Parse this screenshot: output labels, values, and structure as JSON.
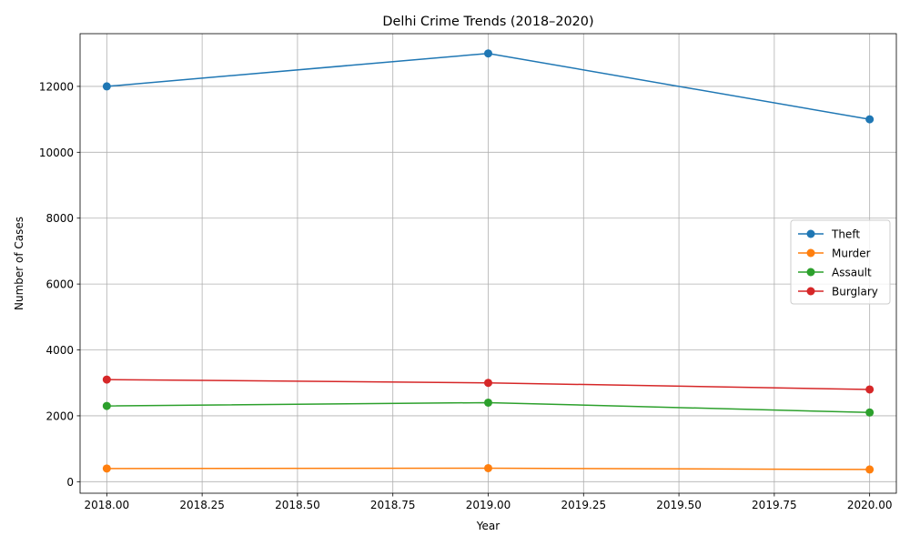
{
  "chart_data": {
    "type": "line",
    "title": "Delhi Crime Trends (2018–2020)",
    "xlabel": "Year",
    "ylabel": "Number of Cases",
    "x": [
      2018,
      2019,
      2020
    ],
    "xlim": [
      2017.93,
      2020.07
    ],
    "ylim": [
      -350,
      13600
    ],
    "xticks": [
      "2018.00",
      "2018.25",
      "2018.50",
      "2018.75",
      "2019.00",
      "2019.25",
      "2019.50",
      "2019.75",
      "2020.00"
    ],
    "xtick_values": [
      2018,
      2018.25,
      2018.5,
      2018.75,
      2019,
      2019.25,
      2019.5,
      2019.75,
      2020
    ],
    "yticks": [
      "0",
      "2000",
      "4000",
      "6000",
      "8000",
      "10000",
      "12000"
    ],
    "ytick_values": [
      0,
      2000,
      4000,
      6000,
      8000,
      10000,
      12000
    ],
    "grid": true,
    "legend_position": "center-right",
    "series": [
      {
        "name": "Theft",
        "color": "#1f77b4",
        "values": [
          12000,
          13000,
          11000
        ]
      },
      {
        "name": "Murder",
        "color": "#ff7f0e",
        "values": [
          400,
          410,
          370
        ]
      },
      {
        "name": "Assault",
        "color": "#2ca02c",
        "values": [
          2300,
          2400,
          2100
        ]
      },
      {
        "name": "Burglary",
        "color": "#d62728",
        "values": [
          3100,
          3000,
          2800
        ]
      }
    ]
  }
}
